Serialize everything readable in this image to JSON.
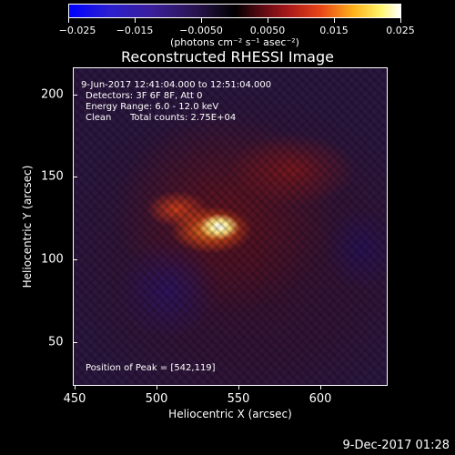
{
  "colorbar": {
    "tick_labels": [
      "−0.025",
      "−0.015",
      "−0.0050",
      "0.0050",
      "0.015",
      "0.025"
    ],
    "units": "(photons cm⁻² s⁻¹ asec⁻²)",
    "range": [
      -0.025,
      0.025
    ]
  },
  "title": "Reconstructed RHESSI Image",
  "annotations": {
    "time": "9-Jun-2017 12:41:04.000 to 12:51:04.000",
    "detectors": "Detectors: 3F 6F 8F, Att 0",
    "energy": "Energy Range: 6.0 - 12.0 keV",
    "algorithm": "Clean",
    "counts": "Total counts: 2.75E+04",
    "peak": "Position of Peak = [542,119]"
  },
  "axes": {
    "x_title": "Heliocentric X (arcsec)",
    "y_title": "Heliocentric Y (arcsec)",
    "x_ticks": [
      "450",
      "500",
      "550",
      "600"
    ],
    "y_ticks": [
      "200",
      "150",
      "100",
      "50"
    ],
    "x_range": [
      440,
      640
    ],
    "y_range": [
      22,
      222
    ]
  },
  "footer": {
    "date": "9-Dec-2017 01:28"
  },
  "colors": {
    "background": "#000000",
    "foreground": "#ffffff",
    "peak": "#ffffff",
    "low": "#2c1740"
  }
}
